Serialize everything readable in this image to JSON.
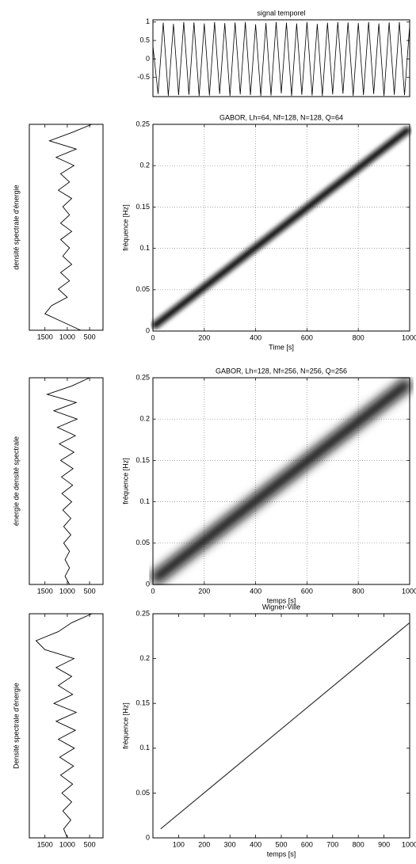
{
  "chart_data": [
    {
      "type": "line",
      "title": "signal temporel",
      "xlim": [
        0,
        1000
      ],
      "ylim": [
        -1.02,
        1.06
      ],
      "yticks": [
        -0.5,
        0,
        0.5,
        1
      ],
      "grid": false,
      "series": [
        {
          "color": "#000000",
          "x": [
            0,
            20,
            40,
            60,
            80,
            100,
            120,
            140,
            160,
            180,
            200,
            220,
            240,
            260,
            280,
            300,
            320,
            340,
            360,
            380,
            400,
            420,
            440,
            460,
            480,
            500,
            520,
            540,
            560,
            580,
            600,
            620,
            640,
            660,
            680,
            700,
            720,
            740,
            760,
            780,
            800,
            820,
            840,
            860,
            880,
            900,
            920,
            940,
            960,
            980,
            1000
          ],
          "values": [
            0.35,
            -0.95,
            0.98,
            -1,
            0.95,
            -0.98,
            1,
            -0.97,
            0.99,
            -1,
            0.96,
            -0.99,
            1,
            -0.95,
            0.97,
            -1,
            0.99,
            -0.96,
            1,
            -0.98,
            0.94,
            -1,
            0.97,
            -0.99,
            1,
            -0.93,
            0.98,
            -1,
            0.96,
            -0.97,
            1,
            -0.99,
            0.95,
            -1,
            0.98,
            -0.96,
            1,
            -0.94,
            0.99,
            -1,
            0.97,
            -0.98,
            1,
            -0.95,
            0.96,
            -1,
            0.99,
            -0.97,
            1,
            -0.98,
            0.9
          ]
        }
      ]
    },
    {
      "type": "marginal",
      "ylabel": "densité spectrale d'énergie",
      "xlim": [
        1850,
        200
      ],
      "ylim": [
        0,
        0.25
      ],
      "xticks": [
        {
          "value": 1500,
          "label": "1500"
        },
        {
          "value": 1000,
          "label": "1000"
        },
        {
          "value": 500,
          "label": "500"
        }
      ],
      "frequencies": [
        0,
        0.01,
        0.02,
        0.03,
        0.04,
        0.05,
        0.06,
        0.07,
        0.08,
        0.09,
        0.1,
        0.11,
        0.12,
        0.13,
        0.14,
        0.15,
        0.16,
        0.17,
        0.18,
        0.19,
        0.2,
        0.21,
        0.22,
        0.23,
        0.24,
        0.25
      ],
      "values": [
        700,
        1100,
        1500,
        1350,
        1000,
        1200,
        950,
        1150,
        900,
        1100,
        950,
        1150,
        900,
        1150,
        950,
        1100,
        900,
        1200,
        950,
        1150,
        850,
        1250,
        800,
        1400,
        900,
        450
      ]
    },
    {
      "type": "spectrogram",
      "title": "GABOR, Lh=64, Nf=128, N=128, Q=64",
      "xlabel": "Time [s]",
      "ylabel": "fréquence [Hz]",
      "xlim": [
        0,
        1000
      ],
      "ylim": [
        0,
        0.25
      ],
      "xticks": [
        0,
        200,
        400,
        600,
        800,
        1000
      ],
      "yticks": [
        0,
        0.05,
        0.1,
        0.15,
        0.2,
        0.25
      ],
      "grid": true,
      "ridge": {
        "x": [
          0,
          1000
        ],
        "y": [
          0.005,
          0.245
        ]
      }
    },
    {
      "type": "marginal",
      "ylabel": "énergie de densité spectrale",
      "xlim": [
        1850,
        200
      ],
      "ylim": [
        0,
        0.25
      ],
      "xticks": [
        {
          "value": 1500,
          "label": "1500"
        },
        {
          "value": 1000,
          "label": "1000"
        },
        {
          "value": 500,
          "label": "500"
        }
      ],
      "frequencies": [
        0,
        0.01,
        0.02,
        0.03,
        0.04,
        0.05,
        0.06,
        0.07,
        0.08,
        0.09,
        0.1,
        0.11,
        0.12,
        0.13,
        0.14,
        0.15,
        0.16,
        0.17,
        0.18,
        0.19,
        0.2,
        0.21,
        0.22,
        0.23,
        0.24,
        0.25
      ],
      "values": [
        950,
        1050,
        950,
        1050,
        950,
        1080,
        920,
        1080,
        920,
        1100,
        900,
        1120,
        880,
        1130,
        870,
        1150,
        850,
        1180,
        820,
        1220,
        780,
        1300,
        800,
        1450,
        900,
        500
      ]
    },
    {
      "type": "spectrogram",
      "title": "GABOR, Lh=128, Nf=256, N=256, Q=256",
      "xlabel": "temps [s]",
      "ylabel": "fréquence [Hz]",
      "xlim": [
        0,
        1000
      ],
      "ylim": [
        0,
        0.25
      ],
      "xticks": [
        0,
        200,
        400,
        600,
        800,
        1000
      ],
      "yticks": [
        0,
        0.05,
        0.1,
        0.15,
        0.2,
        0.25
      ],
      "grid": true,
      "ridge": {
        "x": [
          0,
          1000
        ],
        "y": [
          0.005,
          0.245
        ]
      }
    },
    {
      "type": "marginal",
      "ylabel": "Densité spectrale d'énergie",
      "xlim": [
        1850,
        200
      ],
      "ylim": [
        0,
        0.25
      ],
      "xticks": [
        {
          "value": 1500,
          "label": "1500"
        },
        {
          "value": 1000,
          "label": "1000"
        },
        {
          "value": 500,
          "label": "500"
        }
      ],
      "frequencies": [
        0,
        0.01,
        0.02,
        0.03,
        0.04,
        0.05,
        0.06,
        0.07,
        0.08,
        0.09,
        0.1,
        0.11,
        0.12,
        0.13,
        0.14,
        0.15,
        0.16,
        0.17,
        0.18,
        0.19,
        0.2,
        0.21,
        0.22,
        0.23,
        0.24,
        0.25
      ],
      "values": [
        1000,
        1080,
        920,
        1100,
        900,
        1120,
        880,
        1150,
        860,
        1170,
        840,
        1200,
        820,
        1250,
        800,
        1300,
        880,
        1200,
        900,
        1250,
        850,
        1500,
        1700,
        1200,
        900,
        450
      ]
    },
    {
      "type": "wigner",
      "title": "Wigner-Ville",
      "xlabel": "temps [s]",
      "ylabel": "fréquence [Hz]",
      "xlim": [
        0,
        1000
      ],
      "ylim": [
        0,
        0.25
      ],
      "xticks": [
        100,
        200,
        300,
        400,
        500,
        600,
        700,
        800,
        900,
        1000
      ],
      "yticks": [
        0,
        0.05,
        0.1,
        0.15,
        0.2,
        0.25
      ],
      "grid": false,
      "ridge": {
        "x": [
          30,
          1000
        ],
        "y": [
          0.01,
          0.24
        ]
      }
    }
  ]
}
